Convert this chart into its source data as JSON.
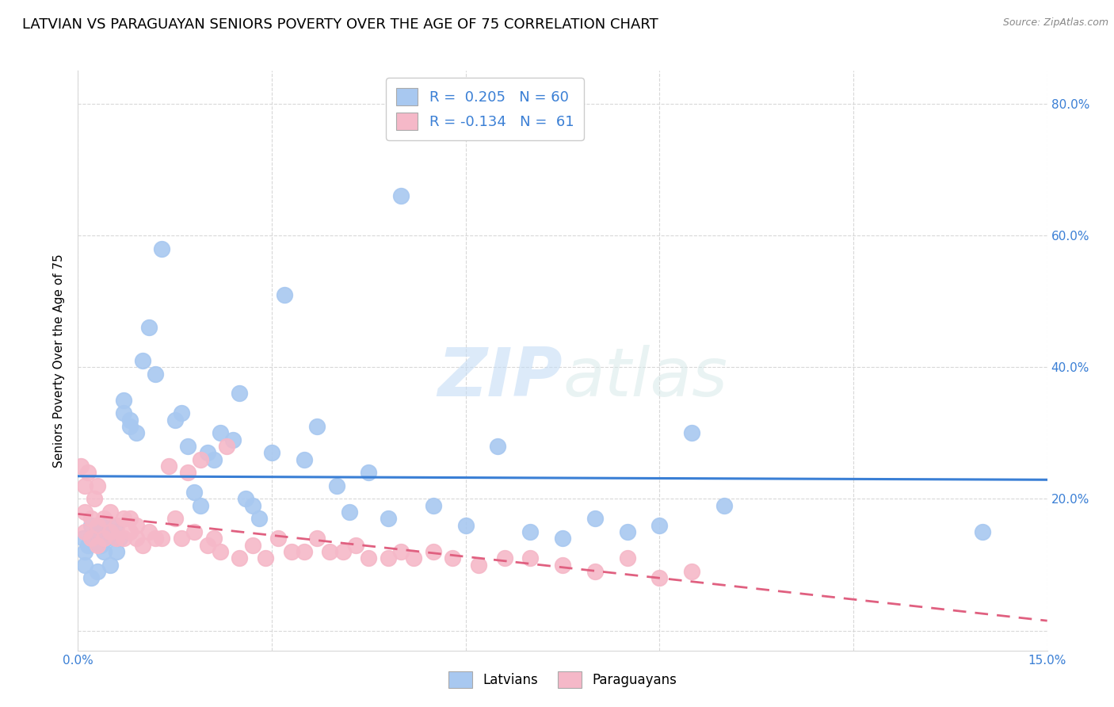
{
  "title": "LATVIAN VS PARAGUAYAN SENIORS POVERTY OVER THE AGE OF 75 CORRELATION CHART",
  "source": "Source: ZipAtlas.com",
  "ylabel": "Seniors Poverty Over the Age of 75",
  "xlim": [
    0.0,
    0.15
  ],
  "ylim": [
    -0.03,
    0.85
  ],
  "latvian_color": "#a8c8f0",
  "paraguayan_color": "#f5b8c8",
  "latvian_line_color": "#3a7fd5",
  "paraguayan_line_color": "#e06080",
  "latvian_R": 0.205,
  "latvian_N": 60,
  "paraguayan_R": -0.134,
  "paraguayan_N": 61,
  "latvian_x": [
    0.0008,
    0.001,
    0.001,
    0.0015,
    0.002,
    0.002,
    0.0025,
    0.003,
    0.003,
    0.0035,
    0.004,
    0.004,
    0.0045,
    0.005,
    0.005,
    0.006,
    0.006,
    0.0065,
    0.007,
    0.007,
    0.008,
    0.008,
    0.009,
    0.01,
    0.011,
    0.012,
    0.013,
    0.015,
    0.016,
    0.017,
    0.018,
    0.019,
    0.02,
    0.021,
    0.022,
    0.024,
    0.025,
    0.026,
    0.027,
    0.028,
    0.03,
    0.032,
    0.035,
    0.037,
    0.04,
    0.042,
    0.045,
    0.048,
    0.05,
    0.055,
    0.06,
    0.065,
    0.07,
    0.075,
    0.08,
    0.085,
    0.09,
    0.095,
    0.1,
    0.14
  ],
  "latvian_y": [
    0.14,
    0.12,
    0.1,
    0.13,
    0.16,
    0.08,
    0.14,
    0.15,
    0.09,
    0.13,
    0.12,
    0.16,
    0.14,
    0.16,
    0.1,
    0.15,
    0.12,
    0.14,
    0.33,
    0.35,
    0.31,
    0.32,
    0.3,
    0.41,
    0.46,
    0.39,
    0.58,
    0.32,
    0.33,
    0.28,
    0.21,
    0.19,
    0.27,
    0.26,
    0.3,
    0.29,
    0.36,
    0.2,
    0.19,
    0.17,
    0.27,
    0.51,
    0.26,
    0.31,
    0.22,
    0.18,
    0.24,
    0.17,
    0.66,
    0.19,
    0.16,
    0.28,
    0.15,
    0.14,
    0.17,
    0.15,
    0.16,
    0.3,
    0.19,
    0.15
  ],
  "paraguayan_x": [
    0.0005,
    0.001,
    0.001,
    0.001,
    0.0015,
    0.002,
    0.002,
    0.0025,
    0.003,
    0.003,
    0.003,
    0.004,
    0.004,
    0.005,
    0.005,
    0.006,
    0.006,
    0.007,
    0.007,
    0.008,
    0.008,
    0.009,
    0.009,
    0.01,
    0.011,
    0.012,
    0.013,
    0.014,
    0.015,
    0.016,
    0.017,
    0.018,
    0.019,
    0.02,
    0.021,
    0.022,
    0.023,
    0.025,
    0.027,
    0.029,
    0.031,
    0.033,
    0.035,
    0.037,
    0.039,
    0.041,
    0.043,
    0.045,
    0.048,
    0.05,
    0.052,
    0.055,
    0.058,
    0.062,
    0.066,
    0.07,
    0.075,
    0.08,
    0.085,
    0.09,
    0.095
  ],
  "paraguayan_y": [
    0.25,
    0.22,
    0.18,
    0.15,
    0.24,
    0.17,
    0.14,
    0.2,
    0.16,
    0.22,
    0.13,
    0.17,
    0.14,
    0.15,
    0.18,
    0.14,
    0.16,
    0.14,
    0.17,
    0.15,
    0.17,
    0.14,
    0.16,
    0.13,
    0.15,
    0.14,
    0.14,
    0.25,
    0.17,
    0.14,
    0.24,
    0.15,
    0.26,
    0.13,
    0.14,
    0.12,
    0.28,
    0.11,
    0.13,
    0.11,
    0.14,
    0.12,
    0.12,
    0.14,
    0.12,
    0.12,
    0.13,
    0.11,
    0.11,
    0.12,
    0.11,
    0.12,
    0.11,
    0.1,
    0.11,
    0.11,
    0.1,
    0.09,
    0.11,
    0.08,
    0.09
  ],
  "watermark_zip": "ZIP",
  "watermark_atlas": "atlas",
  "background_color": "#ffffff",
  "grid_color": "#d8d8d8",
  "tick_color": "#3a7fd5",
  "title_fontsize": 13,
  "label_fontsize": 11,
  "tick_fontsize": 11,
  "legend_R_color": "#000000",
  "legend_N_color": "#3a7fd5"
}
